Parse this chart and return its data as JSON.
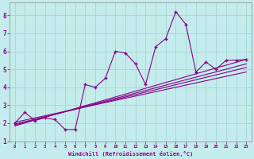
{
  "xlabel": "Windchill (Refroidissement éolien,°C)",
  "ylabel": "",
  "bg_color": "#c5ecec",
  "grid_color": "#a8d8d8",
  "line_color": "#880088",
  "text_color": "#880088",
  "xlim": [
    -0.5,
    23.5
  ],
  "ylim": [
    1,
    8.7
  ],
  "xticks": [
    0,
    1,
    2,
    3,
    4,
    5,
    6,
    7,
    8,
    9,
    10,
    11,
    12,
    13,
    14,
    15,
    16,
    17,
    18,
    19,
    20,
    21,
    22,
    23
  ],
  "yticks": [
    1,
    2,
    3,
    4,
    5,
    6,
    7,
    8
  ],
  "scatter_x": [
    0,
    1,
    2,
    3,
    4,
    5,
    6,
    7,
    8,
    9,
    10,
    11,
    12,
    13,
    14,
    15,
    16,
    17,
    18,
    19,
    20,
    21,
    22,
    23
  ],
  "scatter_y": [
    2.0,
    2.6,
    2.15,
    2.3,
    2.2,
    1.65,
    1.65,
    4.15,
    4.0,
    4.5,
    6.0,
    5.9,
    5.3,
    4.15,
    6.25,
    6.7,
    8.2,
    7.5,
    4.85,
    5.4,
    5.0,
    5.5,
    5.5,
    5.55
  ],
  "reg_lines": [
    {
      "x0": 0,
      "y0": 1.85,
      "x1": 23,
      "y1": 5.55
    },
    {
      "x0": 0,
      "y0": 1.9,
      "x1": 23,
      "y1": 5.3
    },
    {
      "x0": 0,
      "y0": 1.95,
      "x1": 23,
      "y1": 5.1
    },
    {
      "x0": 0,
      "y0": 2.05,
      "x1": 23,
      "y1": 4.85
    }
  ]
}
